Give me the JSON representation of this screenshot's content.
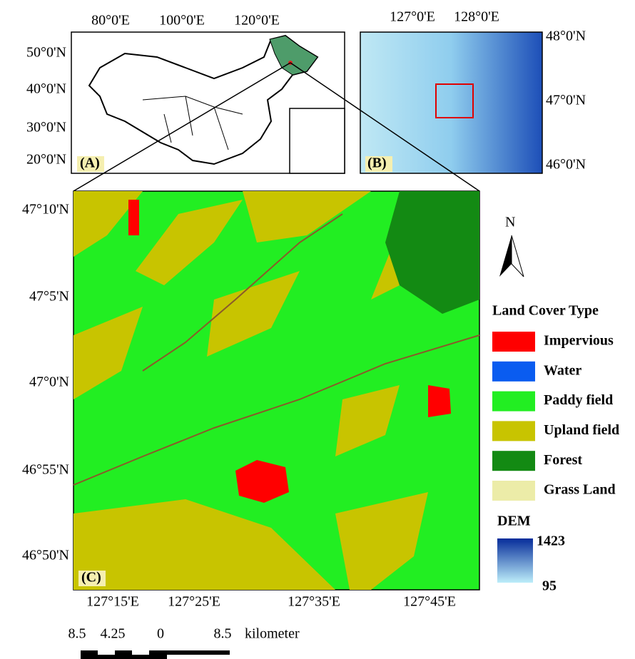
{
  "panel_a": {
    "label": "(A)",
    "lon_labels": [
      "80°0'E",
      "100°0'E",
      "120°0'E"
    ],
    "lat_labels": [
      "50°0'N",
      "40°0'N",
      "30°0'N",
      "20°0'N"
    ]
  },
  "panel_b": {
    "label": "(B)",
    "lon_labels": [
      "127°0'E",
      "128°0'E"
    ],
    "lat_labels": [
      "48°0'N",
      "47°0'N",
      "46°0'N"
    ]
  },
  "panel_c": {
    "label": "(C)",
    "lat_labels": [
      "47°10'N",
      "47°5'N",
      "47°0'N",
      "46°55'N",
      "46°50'N"
    ],
    "lon_labels": [
      "127°15'E",
      "127°25'E",
      "127°35'E",
      "127°45'E"
    ]
  },
  "north_arrow": "N",
  "legend": {
    "title": "Land Cover Type",
    "items": [
      {
        "label": "Impervious",
        "color": "#ff0000"
      },
      {
        "label": "Water",
        "color": "#0a5cf0"
      },
      {
        "label": "Paddy field",
        "color": "#22ee22"
      },
      {
        "label": "Upland field",
        "color": "#c8c400"
      },
      {
        "label": "Forest",
        "color": "#138a13"
      },
      {
        "label": "Grass Land",
        "color": "#ececa8"
      }
    ]
  },
  "dem": {
    "title": "DEM",
    "max": 1423,
    "min": 95
  },
  "scale_bar": {
    "labels": [
      "8.5",
      "4.25",
      "0",
      "8.5"
    ],
    "unit": "kilometer"
  }
}
